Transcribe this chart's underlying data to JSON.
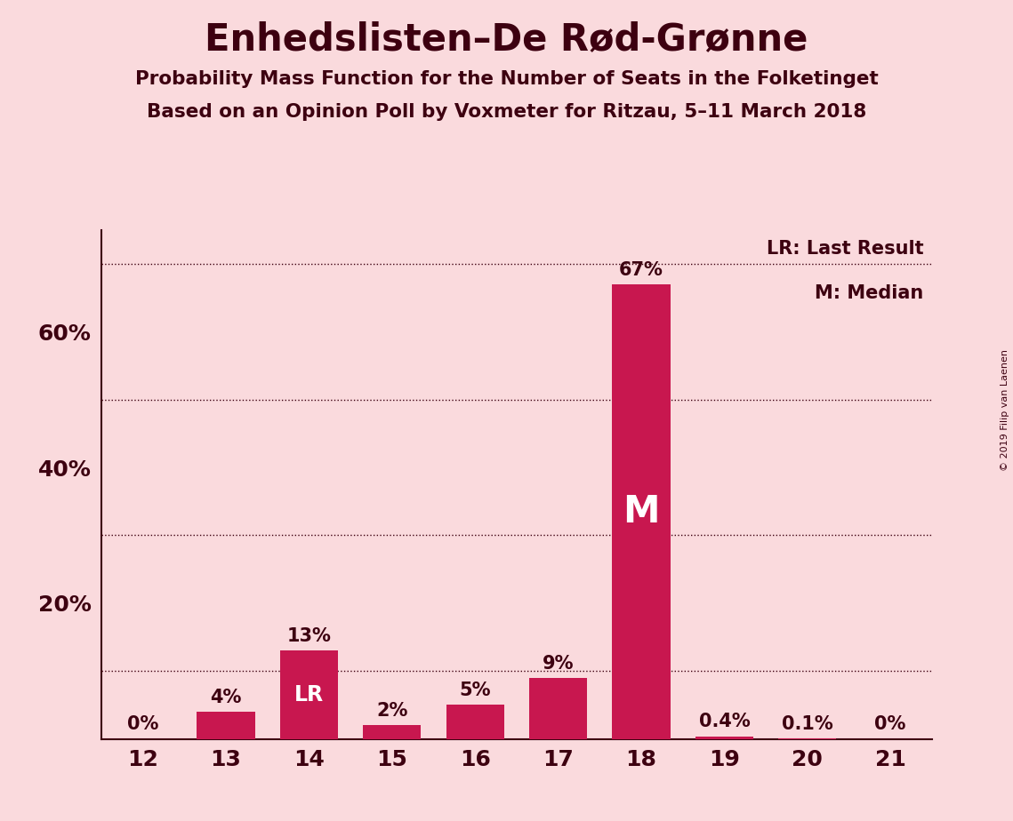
{
  "title": "Enhedslisten–De Rød-Grønne",
  "subtitle1": "Probability Mass Function for the Number of Seats in the Folketinget",
  "subtitle2": "Based on an Opinion Poll by Voxmeter for Ritzau, 5–11 March 2018",
  "copyright": "© 2019 Filip van Laenen",
  "seats": [
    12,
    13,
    14,
    15,
    16,
    17,
    18,
    19,
    20,
    21
  ],
  "probabilities": [
    0.0,
    4.0,
    13.0,
    2.0,
    5.0,
    9.0,
    67.0,
    0.4,
    0.1,
    0.0
  ],
  "prob_labels": [
    "0%",
    "4%",
    "13%",
    "2%",
    "5%",
    "9%",
    "67%",
    "0.4%",
    "0.1%",
    "0%"
  ],
  "show_zero_labels": [
    true,
    false,
    false,
    false,
    false,
    false,
    false,
    false,
    false,
    true
  ],
  "bar_color": "#C8174F",
  "background_color": "#FADADD",
  "text_color": "#3D0010",
  "lr_seat": 14,
  "median_seat": 18,
  "ylim_max": 75,
  "grid_ticks": [
    10,
    30,
    50,
    70
  ],
  "ytick_vals": [
    20,
    40,
    60
  ],
  "ytick_labels": [
    "20%",
    "40%",
    "60%"
  ],
  "legend_lr": "LR: Last Result",
  "legend_m": "M: Median"
}
